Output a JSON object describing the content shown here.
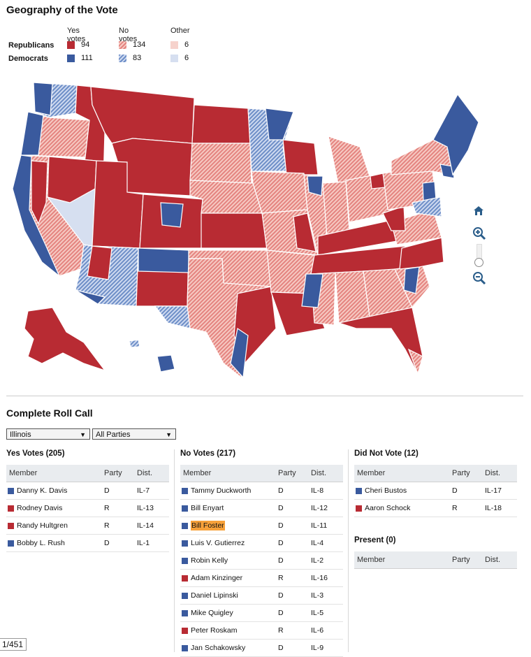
{
  "geo": {
    "title": "Geography of the Vote",
    "legend": {
      "col_yes": "Yes votes",
      "col_no": "No votes",
      "col_other": "Other",
      "rep_label": "Republicans",
      "dem_label": "Democrats",
      "rep_yes": "94",
      "rep_no": "134",
      "rep_other": "6",
      "dem_yes": "111",
      "dem_no": "83",
      "dem_other": "6"
    },
    "colors": {
      "rep": "#b82b33",
      "dem": "#3a5a9e",
      "rep_no": "#e4837f",
      "dem_no": "#6d8ec7"
    }
  },
  "map_controls": {
    "home": "home-icon",
    "zoom_in": "zoom-in-icon",
    "zoom_out": "zoom-out-icon"
  },
  "rollcall": {
    "title": "Complete Roll Call",
    "state_select": "Illinois",
    "party_select": "All Parties",
    "yes": {
      "heading": "Yes Votes (205)",
      "cols": {
        "member": "Member",
        "party": "Party",
        "dist": "Dist."
      },
      "rows": [
        {
          "name": "Danny K. Davis",
          "party": "D",
          "dist": "IL-7"
        },
        {
          "name": "Rodney Davis",
          "party": "R",
          "dist": "IL-13"
        },
        {
          "name": "Randy Hultgren",
          "party": "R",
          "dist": "IL-14"
        },
        {
          "name": "Bobby L. Rush",
          "party": "D",
          "dist": "IL-1"
        }
      ]
    },
    "no": {
      "heading": "No Votes (217)",
      "cols": {
        "member": "Member",
        "party": "Party",
        "dist": "Dist."
      },
      "rows": [
        {
          "name": "Tammy Duckworth",
          "party": "D",
          "dist": "IL-8"
        },
        {
          "name": "Bill Enyart",
          "party": "D",
          "dist": "IL-12"
        },
        {
          "name": "Bill Foster",
          "party": "D",
          "dist": "IL-11"
        },
        {
          "name": "Luis V. Gutierrez",
          "party": "D",
          "dist": "IL-4"
        },
        {
          "name": "Robin Kelly",
          "party": "D",
          "dist": "IL-2"
        },
        {
          "name": "Adam Kinzinger",
          "party": "R",
          "dist": "IL-16"
        },
        {
          "name": "Daniel Lipinski",
          "party": "D",
          "dist": "IL-3"
        },
        {
          "name": "Mike Quigley",
          "party": "D",
          "dist": "IL-5"
        },
        {
          "name": "Peter Roskam",
          "party": "R",
          "dist": "IL-6"
        },
        {
          "name": "Jan Schakowsky",
          "party": "D",
          "dist": "IL-9"
        }
      ]
    },
    "dnv": {
      "heading": "Did Not Vote (12)",
      "cols": {
        "member": "Member",
        "party": "Party",
        "dist": "Dist."
      },
      "rows": [
        {
          "name": "Cheri Bustos",
          "party": "D",
          "dist": "IL-17"
        },
        {
          "name": "Aaron Schock",
          "party": "R",
          "dist": "IL-18"
        }
      ]
    },
    "present": {
      "heading": "Present (0)",
      "cols": {
        "member": "Member",
        "party": "Party",
        "dist": "Dist."
      }
    },
    "pager": "1/451"
  }
}
